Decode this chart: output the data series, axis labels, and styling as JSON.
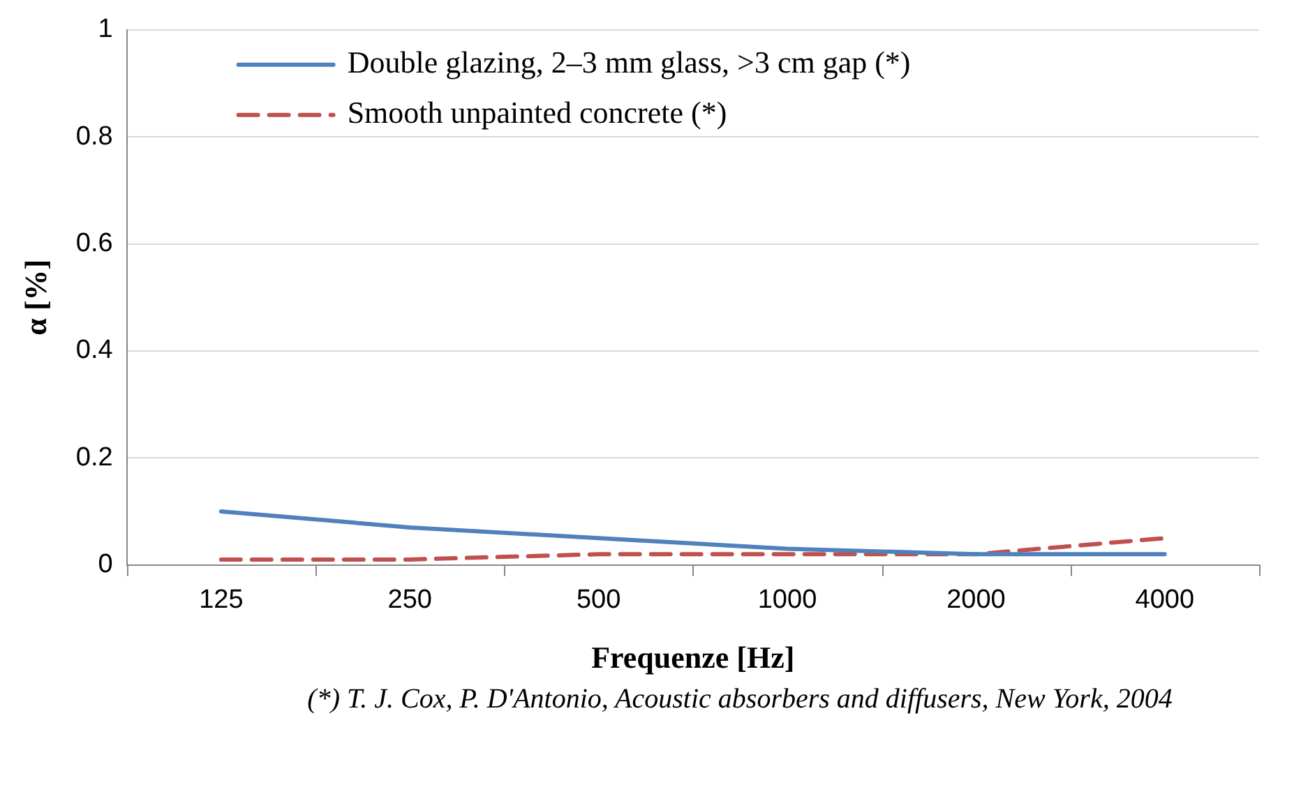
{
  "chart_data": {
    "type": "line",
    "xlabel": "Frequenze [Hz]",
    "ylabel": "α [%]",
    "categories": [
      "125",
      "250",
      "500",
      "1000",
      "2000",
      "4000"
    ],
    "series": [
      {
        "name": "Double glazing, 2–3 mm glass, >3 cm gap (*)",
        "color": "#4f81bd",
        "values": [
          0.1,
          0.07,
          0.05,
          0.03,
          0.02,
          0.02
        ],
        "line_style": "solid"
      },
      {
        "name": "Smooth unpainted concrete (*)",
        "color": "#c0504d",
        "values": [
          0.01,
          0.01,
          0.02,
          0.02,
          0.02,
          0.05
        ],
        "line_style": "dashed"
      }
    ],
    "ylim": [
      0,
      1
    ],
    "yticks": [
      0,
      0.2,
      0.4,
      0.6,
      0.8,
      1
    ],
    "grid": "y",
    "legend": "top left",
    "marker": "none",
    "annotations": [
      "(*) T. J. Cox, P. D'Antonio, Acoustic absorbers and diffusers, New York, 2004"
    ]
  }
}
